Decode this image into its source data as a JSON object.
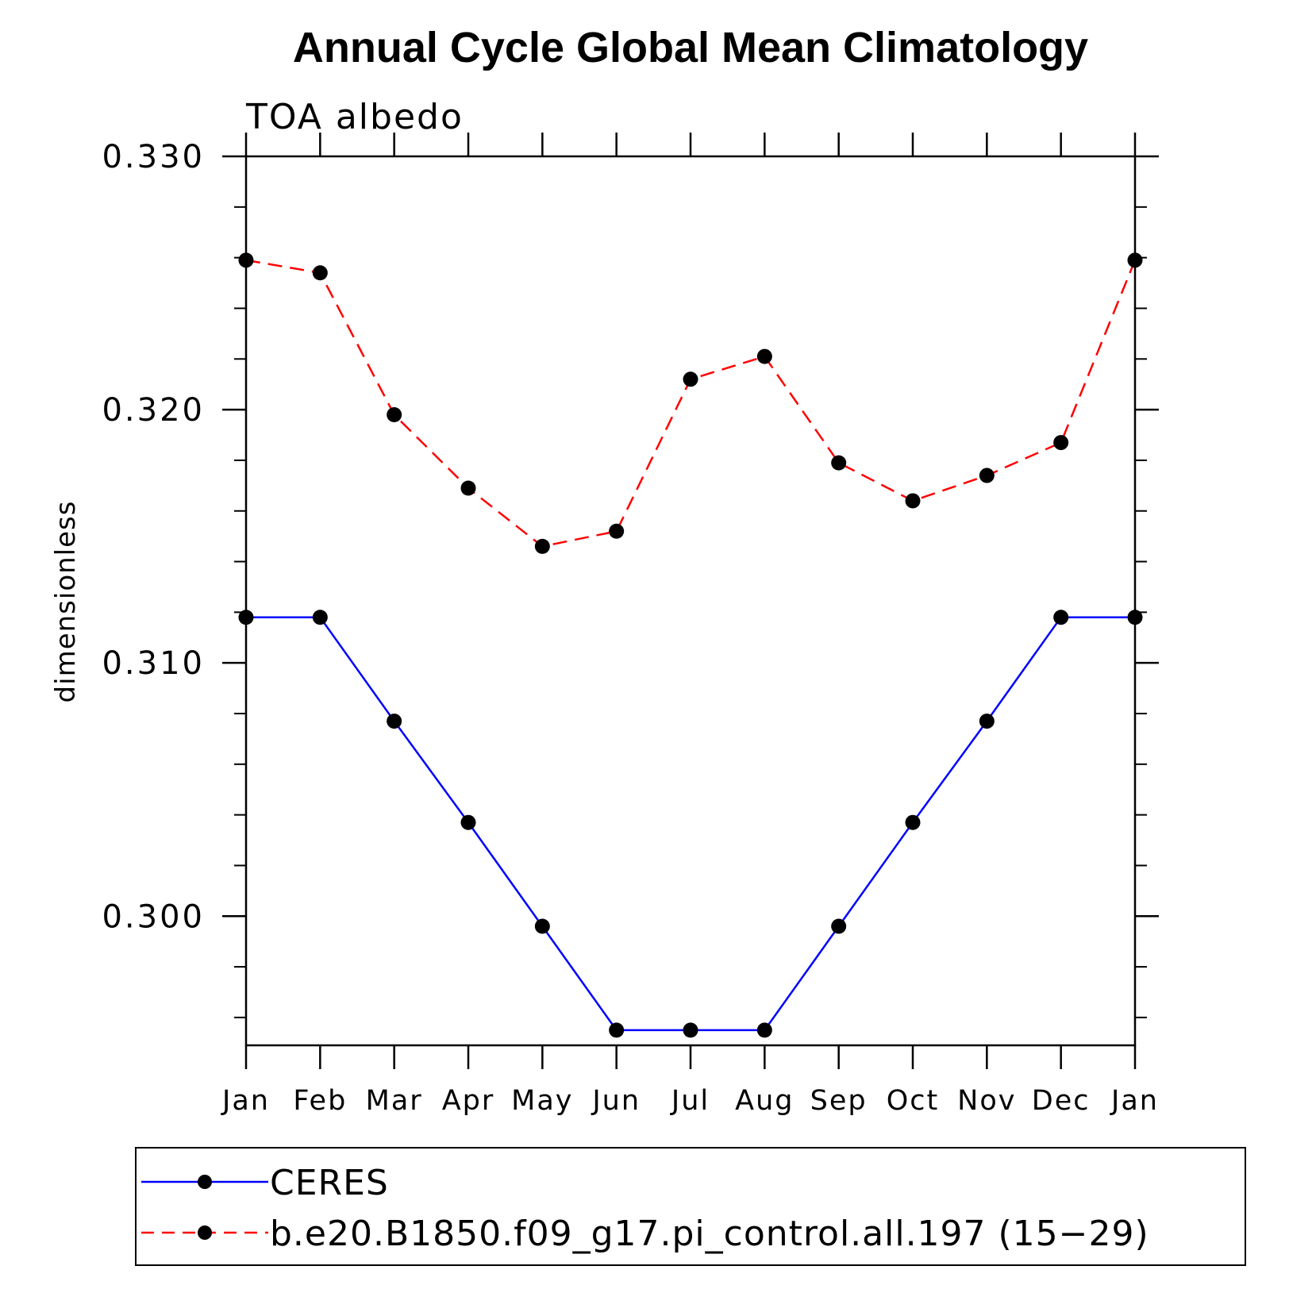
{
  "chart_data": {
    "type": "line",
    "title": "Annual Cycle Global Mean Climatology",
    "subtitle": "TOA albedo",
    "xlabel": "",
    "ylabel": "dimensionless",
    "categories": [
      "Jan",
      "Feb",
      "Mar",
      "Apr",
      "May",
      "Jun",
      "Jul",
      "Aug",
      "Sep",
      "Oct",
      "Nov",
      "Dec",
      "Jan"
    ],
    "ylim": [
      0.2949,
      0.33
    ],
    "yticks": [
      0.3,
      0.31,
      0.32,
      0.33
    ],
    "ytick_labels": [
      "0.300",
      "0.310",
      "0.320",
      "0.330"
    ],
    "y_minor_step": 0.002,
    "grid": false,
    "legend_position": "bottom",
    "series": [
      {
        "name": "CERES",
        "color": "#0000ff",
        "line_style": "solid",
        "marker": "filled-circle",
        "values": [
          0.3118,
          0.3118,
          0.3077,
          0.3037,
          0.2996,
          0.2955,
          0.2955,
          0.2955,
          0.2996,
          0.3037,
          0.3077,
          0.3118,
          0.3118
        ]
      },
      {
        "name": "b.e20.B1850.f09_g17.pi_control.all.197 (15−29)",
        "color": "#ff0000",
        "line_style": "dashed",
        "marker": "filled-circle",
        "values": [
          0.3259,
          0.3254,
          0.3198,
          0.3169,
          0.3146,
          0.3152,
          0.3212,
          0.3221,
          0.3179,
          0.3164,
          0.3174,
          0.3187,
          0.3259
        ]
      }
    ]
  }
}
